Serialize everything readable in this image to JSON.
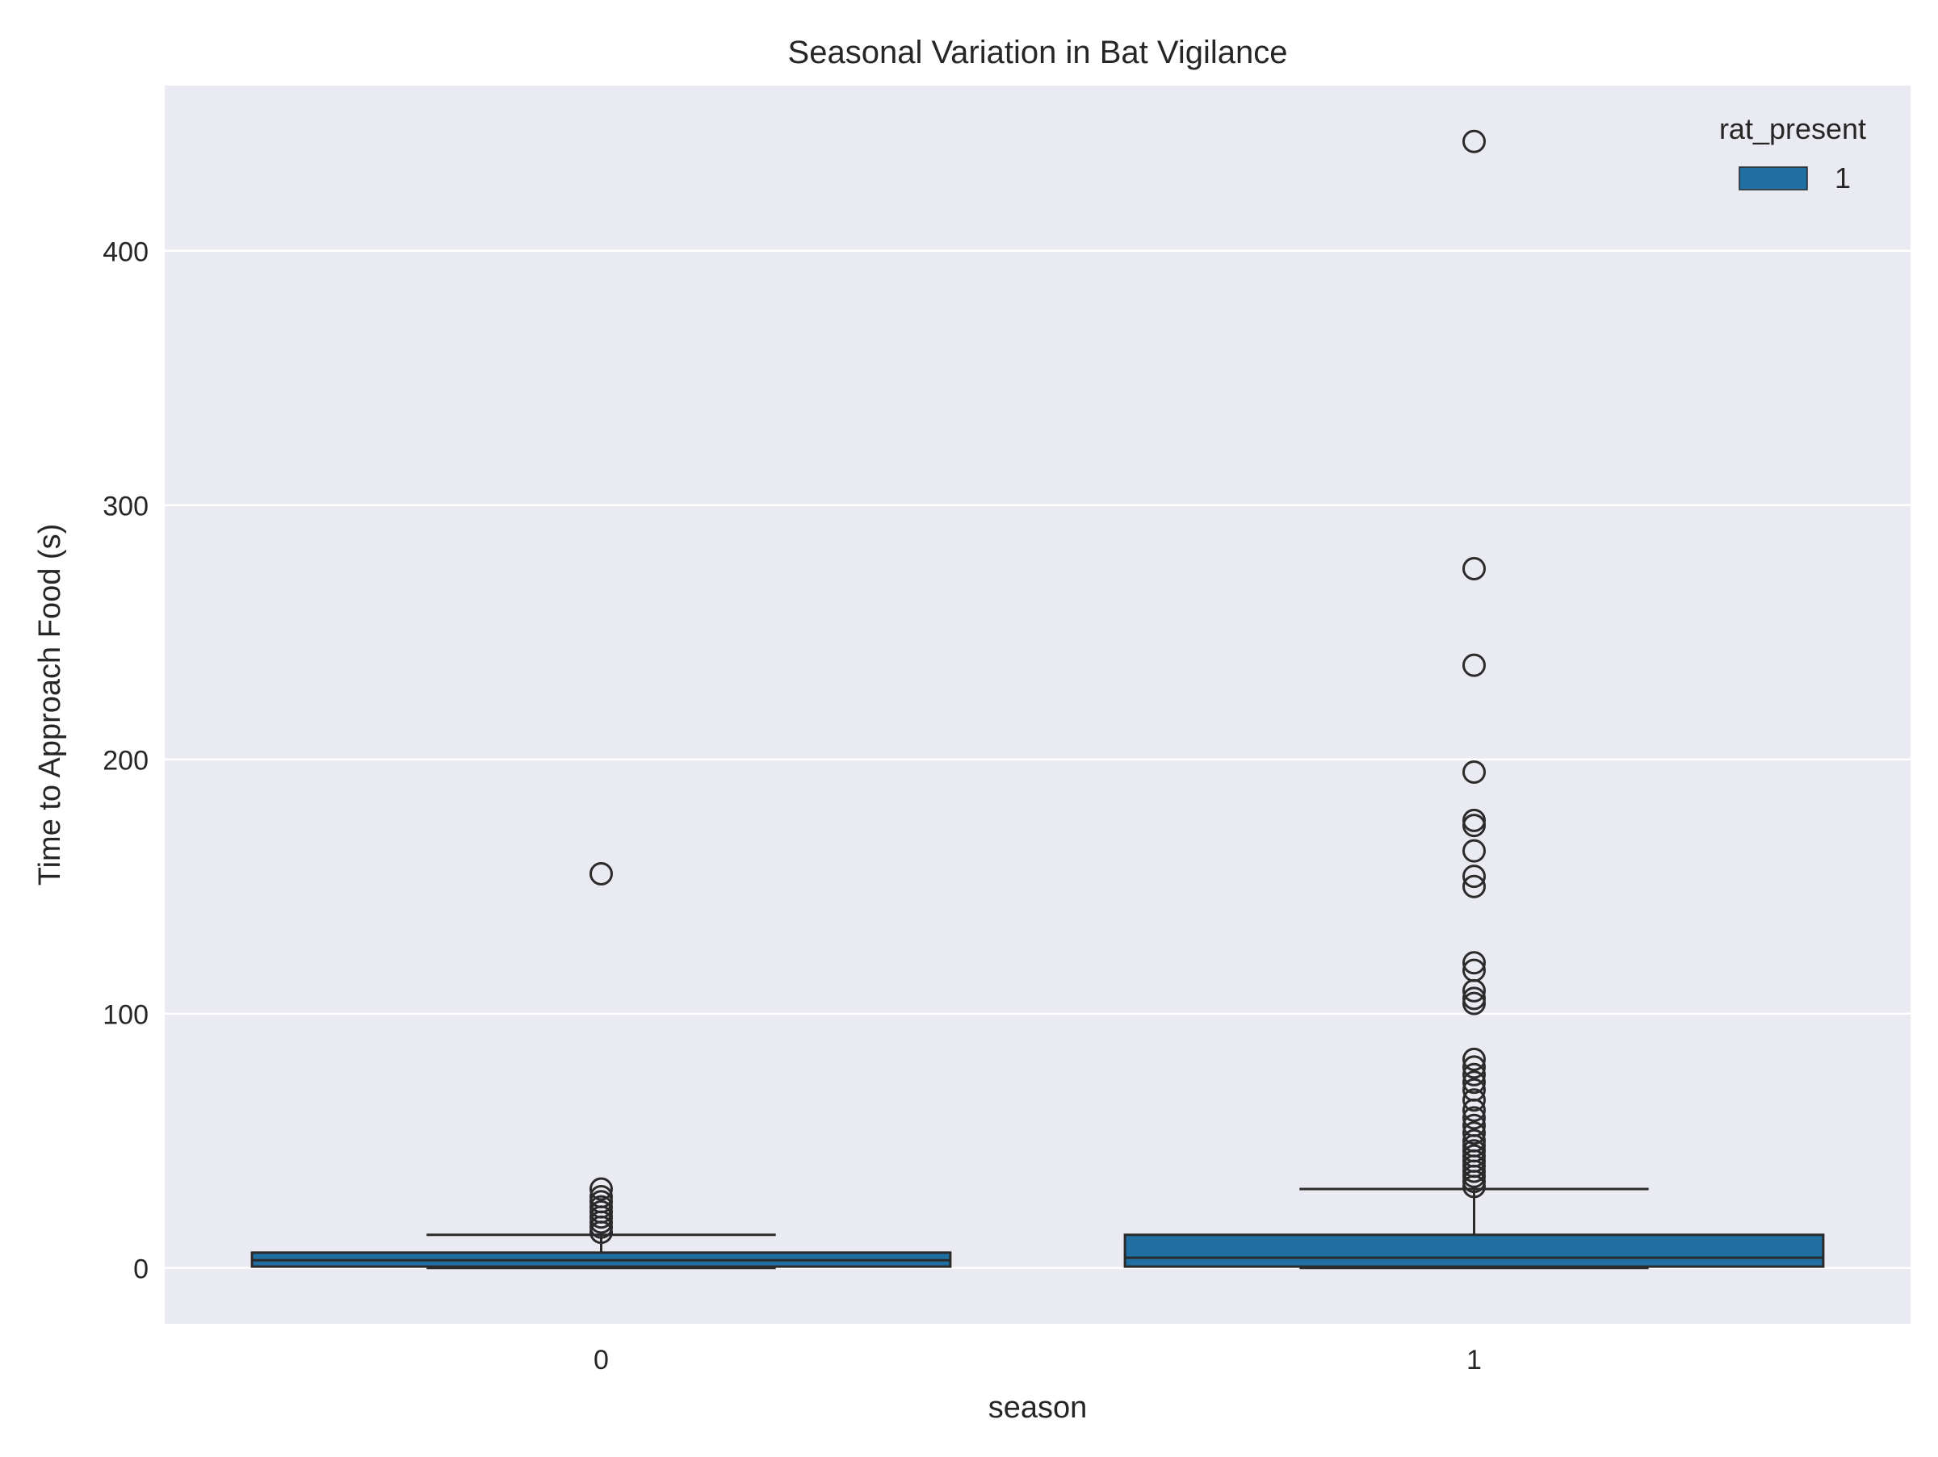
{
  "chart_data": {
    "type": "box",
    "title": "Seasonal Variation in Bat Vigilance",
    "xlabel": "season",
    "ylabel": "Time to Approach Food (s)",
    "categories": [
      "0",
      "1"
    ],
    "ylim": [
      -22,
      465
    ],
    "yticks": [
      0,
      100,
      200,
      300,
      400
    ],
    "grid": true,
    "legend": {
      "title": "rat_present",
      "entries": [
        {
          "label": "1",
          "color": "#1f6fa3"
        }
      ],
      "placement": "top-right"
    },
    "colors": {
      "background": "#eaeaf2",
      "box": "#1f6fa3",
      "line": "#2b2b2b",
      "grid": "#ffffff"
    },
    "series": [
      {
        "category": "0",
        "box": {
          "whisker_low": 0,
          "q1": 0.5,
          "median": 3,
          "q3": 6,
          "whisker_high": 13
        },
        "outliers": [
          14,
          16,
          18,
          20,
          22,
          24,
          26,
          28,
          31,
          155
        ]
      },
      {
        "category": "1",
        "box": {
          "whisker_low": 0,
          "q1": 0.5,
          "median": 4,
          "q3": 13,
          "whisker_high": 31
        },
        "outliers": [
          32,
          34,
          36,
          38,
          40,
          42,
          44,
          46,
          48,
          50,
          53,
          56,
          59,
          62,
          66,
          70,
          73,
          76,
          79,
          82,
          104,
          106,
          109,
          117,
          120,
          150,
          154,
          164,
          174,
          176,
          195,
          237,
          275,
          443
        ]
      }
    ]
  }
}
